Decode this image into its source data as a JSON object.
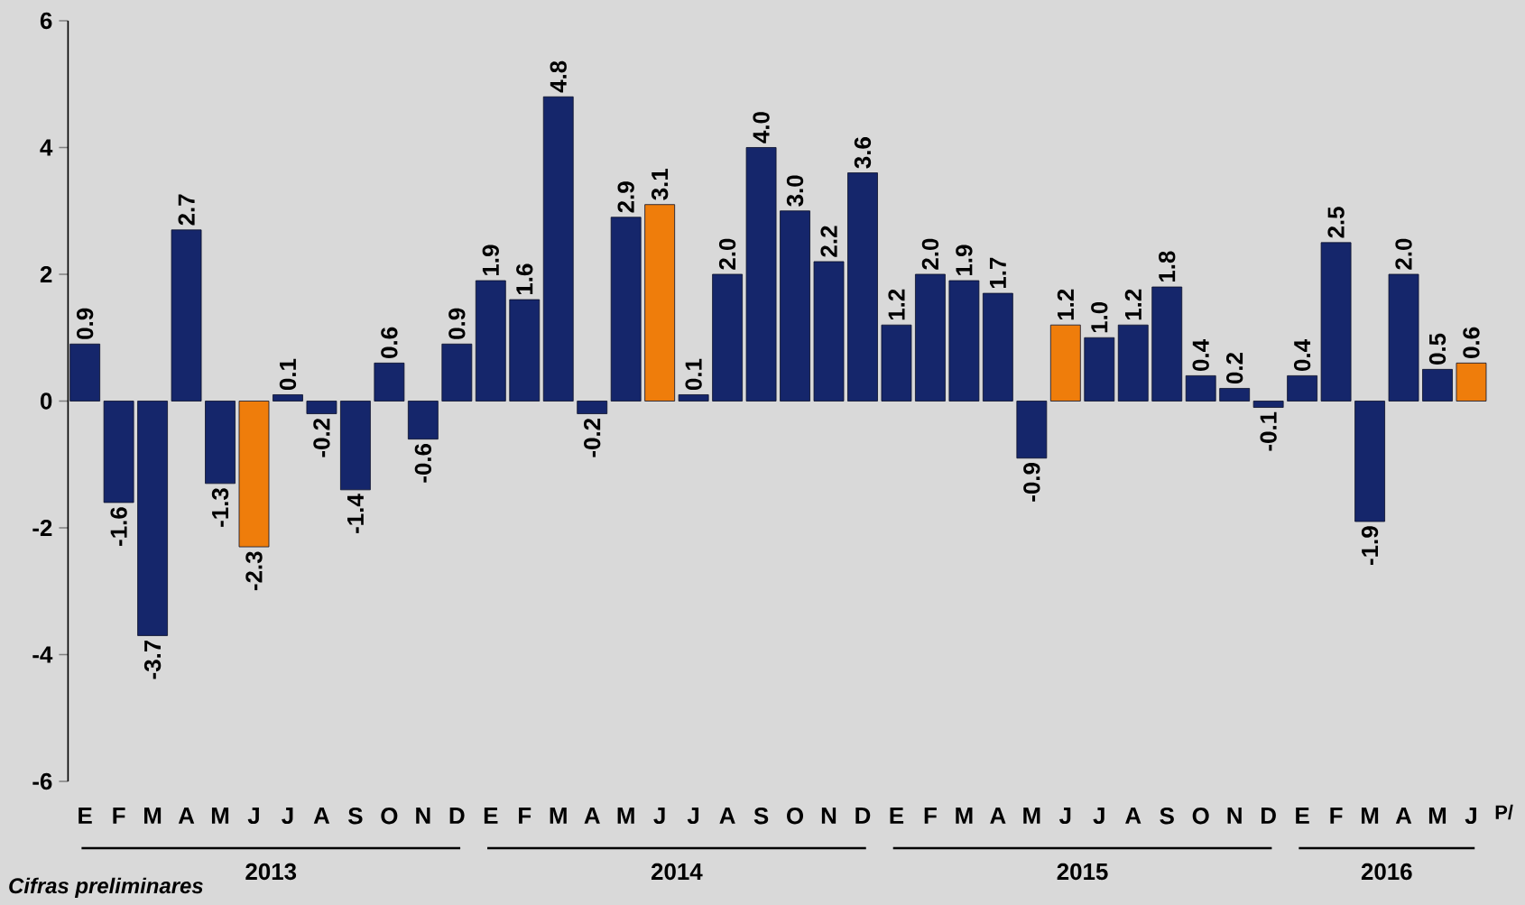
{
  "chart_data": {
    "type": "bar",
    "categories": [
      "E",
      "F",
      "M",
      "A",
      "M",
      "J",
      "J",
      "A",
      "S",
      "O",
      "N",
      "D",
      "E",
      "F",
      "M",
      "A",
      "M",
      "J",
      "J",
      "A",
      "S",
      "O",
      "N",
      "D",
      "E",
      "F",
      "M",
      "A",
      "M",
      "J",
      "J",
      "A",
      "S",
      "O",
      "N",
      "D",
      "E",
      "F",
      "M",
      "A",
      "M",
      "J"
    ],
    "values": [
      0.9,
      -1.6,
      -3.7,
      2.7,
      -1.3,
      -2.3,
      0.1,
      -0.2,
      -1.4,
      0.6,
      -0.6,
      0.9,
      1.9,
      1.6,
      4.8,
      -0.2,
      2.9,
      3.1,
      0.1,
      2.0,
      4.0,
      3.0,
      2.2,
      3.6,
      1.2,
      2.0,
      1.9,
      1.7,
      -0.9,
      1.2,
      1.0,
      1.2,
      1.8,
      0.4,
      0.2,
      -0.1,
      0.4,
      2.5,
      -1.9,
      2.0,
      0.5,
      0.6
    ],
    "colors": [
      "#15266b",
      "#15266b",
      "#15266b",
      "#15266b",
      "#15266b",
      "#ef7d0b",
      "#15266b",
      "#15266b",
      "#15266b",
      "#15266b",
      "#15266b",
      "#15266b",
      "#15266b",
      "#15266b",
      "#15266b",
      "#15266b",
      "#15266b",
      "#ef7d0b",
      "#15266b",
      "#15266b",
      "#15266b",
      "#15266b",
      "#15266b",
      "#15266b",
      "#15266b",
      "#15266b",
      "#15266b",
      "#15266b",
      "#15266b",
      "#ef7d0b",
      "#15266b",
      "#15266b",
      "#15266b",
      "#15266b",
      "#15266b",
      "#15266b",
      "#15266b",
      "#15266b",
      "#15266b",
      "#15266b",
      "#15266b",
      "#ef7d0b"
    ],
    "ylim": [
      -6,
      6
    ],
    "yticks": [
      -6,
      -4,
      -2,
      0,
      2,
      4,
      6
    ],
    "value_labels": [
      "0.9",
      "-1.6",
      "-3.7",
      "2.7",
      "-1.3",
      "-2.3",
      "0.1",
      "-0.2",
      "-1.4",
      "0.6",
      "-0.6",
      "0.9",
      "1.9",
      "1.6",
      "4.8",
      "-0.2",
      "2.9",
      "3.1",
      "0.1",
      "2.0",
      "4.0",
      "3.0",
      "2.2",
      "3.6",
      "1.2",
      "2.0",
      "1.9",
      "1.7",
      "-0.9",
      "1.2",
      "1.0",
      "1.2",
      "1.8",
      "0.4",
      "0.2",
      "-0.1",
      "0.4",
      "2.5",
      "-1.9",
      "2.0",
      "0.5",
      "0.6"
    ],
    "annotations": [
      "2013",
      "2014",
      "2015",
      "2016",
      "P/",
      "Cifras preliminares"
    ]
  }
}
